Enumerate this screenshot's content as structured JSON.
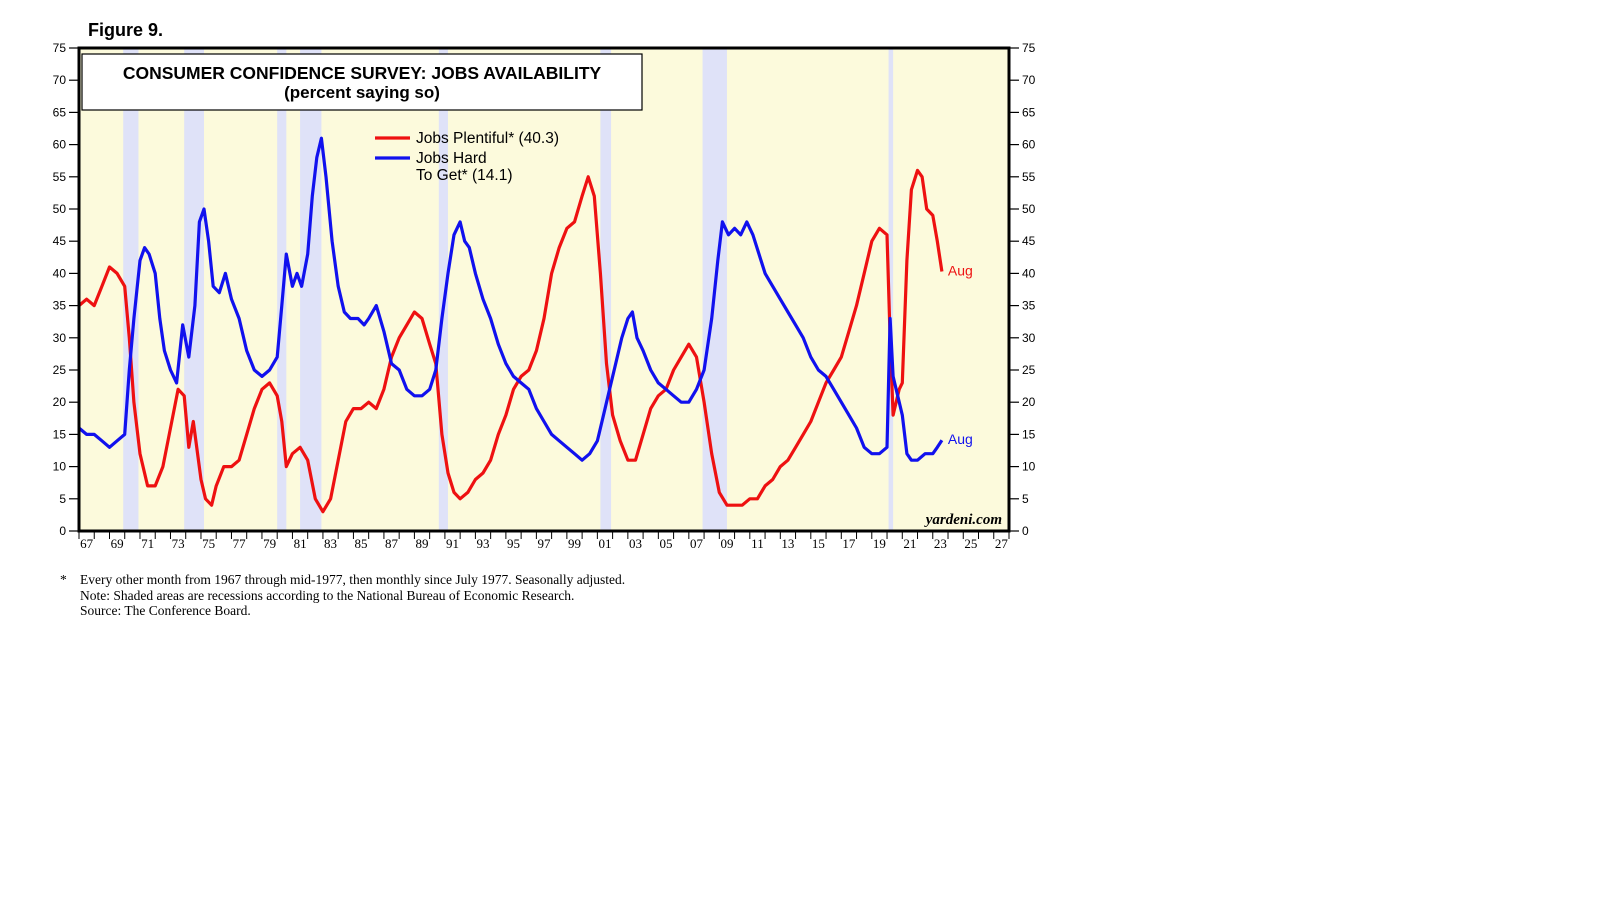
{
  "figure_label": "Figure 9.",
  "chart_data": {
    "type": "line",
    "title": "CONSUMER CONFIDENCE SURVEY: JOBS AVAILABILITY",
    "subtitle": "(percent saying so)",
    "ylim": [
      0,
      75
    ],
    "yticks": [
      "0",
      "5",
      "10",
      "15",
      "20",
      "25",
      "30",
      "35",
      "40",
      "45",
      "50",
      "55",
      "60",
      "65",
      "70",
      "75"
    ],
    "xlim": [
      1967,
      2028
    ],
    "xticks": [
      "67",
      "69",
      "71",
      "73",
      "75",
      "77",
      "79",
      "81",
      "83",
      "85",
      "87",
      "89",
      "91",
      "93",
      "95",
      "97",
      "99",
      "01",
      "03",
      "05",
      "07",
      "09",
      "11",
      "13",
      "15",
      "17",
      "19",
      "21",
      "23",
      "25",
      "27"
    ],
    "watermark": "yardeni.com",
    "recessions": [
      [
        1969.9,
        1970.9
      ],
      [
        1973.9,
        1975.2
      ],
      [
        1980.0,
        1980.6
      ],
      [
        1981.5,
        1982.9
      ],
      [
        1990.6,
        1991.2
      ],
      [
        2001.2,
        2001.9
      ],
      [
        2007.9,
        2009.5
      ],
      [
        2020.1,
        2020.4
      ]
    ],
    "series": [
      {
        "name": "Jobs Plentiful* (40.3)",
        "color": "#ee1111",
        "end_label": "Aug",
        "points": [
          [
            1967.0,
            35
          ],
          [
            1967.5,
            36
          ],
          [
            1968.0,
            35
          ],
          [
            1968.5,
            38
          ],
          [
            1969.0,
            41
          ],
          [
            1969.5,
            40
          ],
          [
            1970.0,
            38
          ],
          [
            1970.3,
            30
          ],
          [
            1970.6,
            20
          ],
          [
            1971.0,
            12
          ],
          [
            1971.5,
            7
          ],
          [
            1972.0,
            7
          ],
          [
            1972.5,
            10
          ],
          [
            1973.0,
            16
          ],
          [
            1973.5,
            22
          ],
          [
            1973.9,
            21
          ],
          [
            1974.2,
            13
          ],
          [
            1974.5,
            17
          ],
          [
            1975.0,
            8
          ],
          [
            1975.3,
            5
          ],
          [
            1975.7,
            4
          ],
          [
            1976.0,
            7
          ],
          [
            1976.5,
            10
          ],
          [
            1977.0,
            10
          ],
          [
            1977.5,
            11
          ],
          [
            1978.0,
            15
          ],
          [
            1978.5,
            19
          ],
          [
            1979.0,
            22
          ],
          [
            1979.5,
            23
          ],
          [
            1980.0,
            21
          ],
          [
            1980.3,
            17
          ],
          [
            1980.6,
            10
          ],
          [
            1981.0,
            12
          ],
          [
            1981.5,
            13
          ],
          [
            1982.0,
            11
          ],
          [
            1982.5,
            5
          ],
          [
            1983.0,
            3
          ],
          [
            1983.5,
            5
          ],
          [
            1984.0,
            11
          ],
          [
            1984.5,
            17
          ],
          [
            1985.0,
            19
          ],
          [
            1985.5,
            19
          ],
          [
            1986.0,
            20
          ],
          [
            1986.5,
            19
          ],
          [
            1987.0,
            22
          ],
          [
            1987.5,
            27
          ],
          [
            1988.0,
            30
          ],
          [
            1988.5,
            32
          ],
          [
            1989.0,
            34
          ],
          [
            1989.5,
            33
          ],
          [
            1990.0,
            29
          ],
          [
            1990.4,
            26
          ],
          [
            1990.8,
            15
          ],
          [
            1991.2,
            9
          ],
          [
            1991.6,
            6
          ],
          [
            1992.0,
            5
          ],
          [
            1992.5,
            6
          ],
          [
            1993.0,
            8
          ],
          [
            1993.5,
            9
          ],
          [
            1994.0,
            11
          ],
          [
            1994.5,
            15
          ],
          [
            1995.0,
            18
          ],
          [
            1995.5,
            22
          ],
          [
            1996.0,
            24
          ],
          [
            1996.5,
            25
          ],
          [
            1997.0,
            28
          ],
          [
            1997.5,
            33
          ],
          [
            1998.0,
            40
          ],
          [
            1998.5,
            44
          ],
          [
            1999.0,
            47
          ],
          [
            1999.5,
            48
          ],
          [
            2000.0,
            52
          ],
          [
            2000.4,
            55
          ],
          [
            2000.8,
            52
          ],
          [
            2001.2,
            40
          ],
          [
            2001.6,
            26
          ],
          [
            2002.0,
            18
          ],
          [
            2002.5,
            14
          ],
          [
            2003.0,
            11
          ],
          [
            2003.5,
            11
          ],
          [
            2004.0,
            15
          ],
          [
            2004.5,
            19
          ],
          [
            2005.0,
            21
          ],
          [
            2005.5,
            22
          ],
          [
            2006.0,
            25
          ],
          [
            2006.5,
            27
          ],
          [
            2007.0,
            29
          ],
          [
            2007.5,
            27
          ],
          [
            2008.0,
            20
          ],
          [
            2008.5,
            12
          ],
          [
            2009.0,
            6
          ],
          [
            2009.5,
            4
          ],
          [
            2010.0,
            4
          ],
          [
            2010.5,
            4
          ],
          [
            2011.0,
            5
          ],
          [
            2011.5,
            5
          ],
          [
            2012.0,
            7
          ],
          [
            2012.5,
            8
          ],
          [
            2013.0,
            10
          ],
          [
            2013.5,
            11
          ],
          [
            2014.0,
            13
          ],
          [
            2014.5,
            15
          ],
          [
            2015.0,
            17
          ],
          [
            2015.5,
            20
          ],
          [
            2016.0,
            23
          ],
          [
            2016.5,
            25
          ],
          [
            2017.0,
            27
          ],
          [
            2017.5,
            31
          ],
          [
            2018.0,
            35
          ],
          [
            2018.5,
            40
          ],
          [
            2019.0,
            45
          ],
          [
            2019.5,
            47
          ],
          [
            2020.0,
            46
          ],
          [
            2020.2,
            30
          ],
          [
            2020.4,
            18
          ],
          [
            2020.8,
            22
          ],
          [
            2021.0,
            23
          ],
          [
            2021.3,
            42
          ],
          [
            2021.6,
            53
          ],
          [
            2022.0,
            56
          ],
          [
            2022.3,
            55
          ],
          [
            2022.6,
            50
          ],
          [
            2023.0,
            49
          ],
          [
            2023.3,
            45
          ],
          [
            2023.6,
            40.3
          ]
        ]
      },
      {
        "name": "Jobs Hard\nTo Get* (14.1)",
        "color": "#1111ee",
        "end_label": "Aug",
        "points": [
          [
            1967.0,
            16
          ],
          [
            1967.5,
            15
          ],
          [
            1968.0,
            15
          ],
          [
            1968.5,
            14
          ],
          [
            1969.0,
            13
          ],
          [
            1969.5,
            14
          ],
          [
            1970.0,
            15
          ],
          [
            1970.3,
            25
          ],
          [
            1970.6,
            33
          ],
          [
            1971.0,
            42
          ],
          [
            1971.3,
            44
          ],
          [
            1971.6,
            43
          ],
          [
            1972.0,
            40
          ],
          [
            1972.3,
            33
          ],
          [
            1972.6,
            28
          ],
          [
            1973.0,
            25
          ],
          [
            1973.4,
            23
          ],
          [
            1973.8,
            32
          ],
          [
            1974.2,
            27
          ],
          [
            1974.6,
            35
          ],
          [
            1974.9,
            48
          ],
          [
            1975.2,
            50
          ],
          [
            1975.5,
            45
          ],
          [
            1975.8,
            38
          ],
          [
            1976.2,
            37
          ],
          [
            1976.6,
            40
          ],
          [
            1977.0,
            36
          ],
          [
            1977.5,
            33
          ],
          [
            1978.0,
            28
          ],
          [
            1978.5,
            25
          ],
          [
            1979.0,
            24
          ],
          [
            1979.5,
            25
          ],
          [
            1980.0,
            27
          ],
          [
            1980.3,
            35
          ],
          [
            1980.6,
            43
          ],
          [
            1981.0,
            38
          ],
          [
            1981.3,
            40
          ],
          [
            1981.6,
            38
          ],
          [
            1982.0,
            43
          ],
          [
            1982.3,
            52
          ],
          [
            1982.6,
            58
          ],
          [
            1982.9,
            61
          ],
          [
            1983.2,
            55
          ],
          [
            1983.6,
            45
          ],
          [
            1984.0,
            38
          ],
          [
            1984.4,
            34
          ],
          [
            1984.8,
            33
          ],
          [
            1985.3,
            33
          ],
          [
            1985.7,
            32
          ],
          [
            1986.0,
            33
          ],
          [
            1986.5,
            35
          ],
          [
            1987.0,
            31
          ],
          [
            1987.5,
            26
          ],
          [
            1988.0,
            25
          ],
          [
            1988.5,
            22
          ],
          [
            1989.0,
            21
          ],
          [
            1989.5,
            21
          ],
          [
            1990.0,
            22
          ],
          [
            1990.4,
            25
          ],
          [
            1990.8,
            33
          ],
          [
            1991.2,
            40
          ],
          [
            1991.6,
            46
          ],
          [
            1992.0,
            48
          ],
          [
            1992.3,
            45
          ],
          [
            1992.6,
            44
          ],
          [
            1993.0,
            40
          ],
          [
            1993.5,
            36
          ],
          [
            1994.0,
            33
          ],
          [
            1994.5,
            29
          ],
          [
            1995.0,
            26
          ],
          [
            1995.5,
            24
          ],
          [
            1996.0,
            23
          ],
          [
            1996.5,
            22
          ],
          [
            1997.0,
            19
          ],
          [
            1997.5,
            17
          ],
          [
            1998.0,
            15
          ],
          [
            1998.5,
            14
          ],
          [
            1999.0,
            13
          ],
          [
            1999.5,
            12
          ],
          [
            2000.0,
            11
          ],
          [
            2000.5,
            12
          ],
          [
            2001.0,
            14
          ],
          [
            2001.4,
            18
          ],
          [
            2001.8,
            22
          ],
          [
            2002.2,
            26
          ],
          [
            2002.6,
            30
          ],
          [
            2003.0,
            33
          ],
          [
            2003.3,
            34
          ],
          [
            2003.6,
            30
          ],
          [
            2004.0,
            28
          ],
          [
            2004.5,
            25
          ],
          [
            2005.0,
            23
          ],
          [
            2005.5,
            22
          ],
          [
            2006.0,
            21
          ],
          [
            2006.5,
            20
          ],
          [
            2007.0,
            20
          ],
          [
            2007.5,
            22
          ],
          [
            2008.0,
            25
          ],
          [
            2008.5,
            33
          ],
          [
            2008.9,
            42
          ],
          [
            2009.2,
            48
          ],
          [
            2009.6,
            46
          ],
          [
            2010.0,
            47
          ],
          [
            2010.4,
            46
          ],
          [
            2010.8,
            48
          ],
          [
            2011.2,
            46
          ],
          [
            2011.6,
            43
          ],
          [
            2012.0,
            40
          ],
          [
            2012.5,
            38
          ],
          [
            2013.0,
            36
          ],
          [
            2013.5,
            34
          ],
          [
            2014.0,
            32
          ],
          [
            2014.5,
            30
          ],
          [
            2015.0,
            27
          ],
          [
            2015.5,
            25
          ],
          [
            2016.0,
            24
          ],
          [
            2016.5,
            22
          ],
          [
            2017.0,
            20
          ],
          [
            2017.5,
            18
          ],
          [
            2018.0,
            16
          ],
          [
            2018.5,
            13
          ],
          [
            2019.0,
            12
          ],
          [
            2019.5,
            12
          ],
          [
            2020.0,
            13
          ],
          [
            2020.2,
            33
          ],
          [
            2020.4,
            24
          ],
          [
            2020.7,
            21
          ],
          [
            2021.0,
            18
          ],
          [
            2021.3,
            12
          ],
          [
            2021.6,
            11
          ],
          [
            2022.0,
            11
          ],
          [
            2022.5,
            12
          ],
          [
            2023.0,
            12
          ],
          [
            2023.3,
            13
          ],
          [
            2023.6,
            14.1
          ]
        ]
      }
    ]
  },
  "notes": {
    "star": "*",
    "line1": "Every other month from 1967 through mid-1977, then monthly since July 1977. Seasonally adjusted.",
    "line2": "Note: Shaded areas are recessions according to the National Bureau of Economic Research.",
    "line3": "Source: The Conference Board."
  }
}
